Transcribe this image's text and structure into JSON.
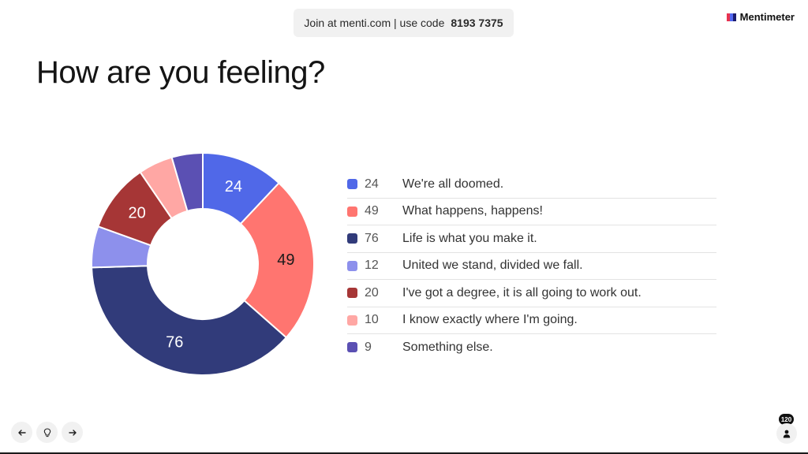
{
  "header": {
    "join_text": "Join at menti.com | use code",
    "join_code": "8193 7375",
    "brand": "Mentimeter"
  },
  "slide": {
    "title": "How are you feeling?"
  },
  "chart_data": {
    "type": "pie",
    "title": "How are you feeling?",
    "total": 200,
    "slices": [
      {
        "label": "We're all doomed.",
        "value": 24,
        "color": "#5068e8"
      },
      {
        "label": "What happens, happens!",
        "value": 49,
        "color": "#ff7570"
      },
      {
        "label": "Life is what you make it.",
        "value": 76,
        "color": "#313b7a"
      },
      {
        "label": "United we stand, divided we fall.",
        "value": 12,
        "color": "#8d90ec"
      },
      {
        "label": "I've got a degree, it is all going to work out.",
        "value": 20,
        "color": "#a63636"
      },
      {
        "label": "I know exactly where I'm going.",
        "value": 10,
        "color": "#ffa7a4"
      },
      {
        "label": "Something else.",
        "value": 9,
        "color": "#5b50b3"
      }
    ],
    "legend": "right",
    "donut": true
  },
  "nav": {
    "prev_icon": "arrow-left-icon",
    "reactions_icon": "lightbulb-icon",
    "next_icon": "arrow-right-icon"
  },
  "audience": {
    "count": "120",
    "icon": "person-icon"
  }
}
